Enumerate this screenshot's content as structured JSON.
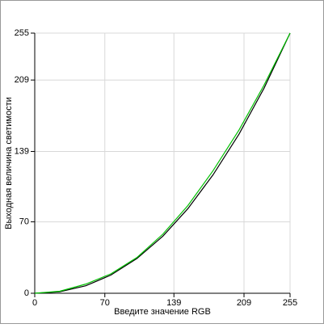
{
  "chart_data": {
    "type": "line",
    "x_label": "Введите значение RGB",
    "y_label": "Выходная величина светимости",
    "x": [
      0,
      25,
      51,
      76,
      102,
      128,
      153,
      178,
      204,
      229,
      255
    ],
    "series": [
      {
        "name": "",
        "color": "#000000",
        "values": [
          0,
          1.5,
          7.4,
          17.8,
          34,
          56,
          83,
          116,
          156,
          201,
          255
        ]
      },
      {
        "name": "",
        "color": "#00c000",
        "values": [
          0,
          2,
          9,
          19,
          35,
          58,
          86,
          120,
          160,
          204,
          255
        ]
      }
    ],
    "xlim": [
      0,
      255
    ],
    "ylim": [
      0,
      255
    ],
    "xticks": [
      0,
      70,
      139,
      209,
      255
    ],
    "yticks": [
      0,
      70,
      139,
      209,
      255
    ],
    "grid": true
  }
}
